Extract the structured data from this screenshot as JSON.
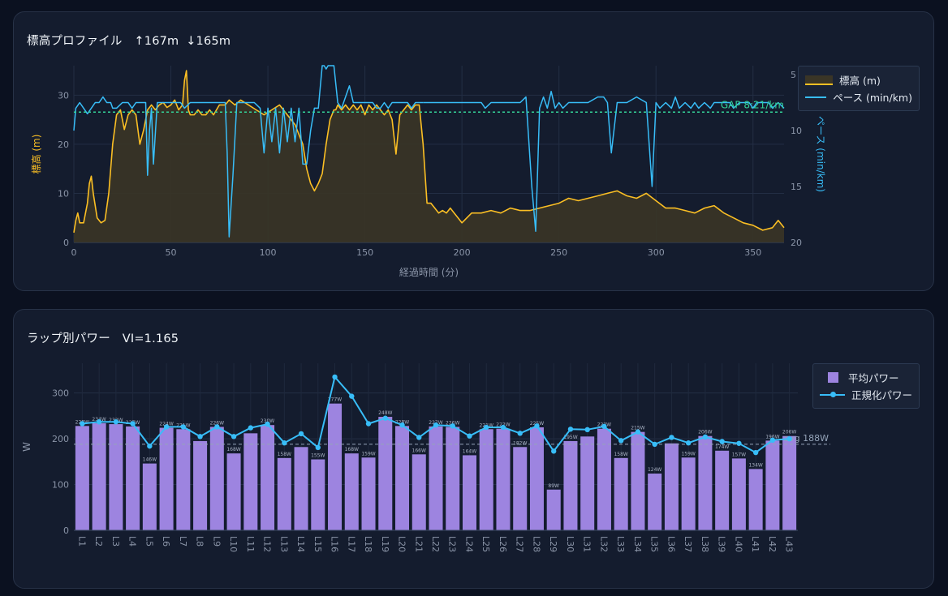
{
  "elevation_panel": {
    "title": "標高プロファイル",
    "gain": "↑167m",
    "loss": "↓165m"
  },
  "power_panel": {
    "title": "ラップ別パワー",
    "vi": "VI=1.165"
  },
  "colors": {
    "elevation": "#fbbf24",
    "pace": "#38bdf8",
    "gap_line": "#34d399",
    "power_bar": "#9d84e0",
    "normalized_power": "#38bdf8",
    "avg_line": "#94a3b8"
  },
  "chart_data": [
    {
      "type": "line",
      "xlabel": "経過時間 (分)",
      "ylabel_left": "標高 (m)",
      "ylabel_right": "ペース (min/km)",
      "xlim": [
        0,
        366
      ],
      "ylim_left": [
        0,
        36
      ],
      "ylim_right_inverted": [
        20,
        4.2
      ],
      "x_ticks": [
        0,
        50,
        100,
        150,
        200,
        250,
        300,
        350
      ],
      "y_ticks_left": [
        0,
        10,
        20,
        30
      ],
      "y_ticks_right": [
        5,
        10,
        15,
        20
      ],
      "legend_position": "top-right",
      "grid": true,
      "series": [
        {
          "name": "標高 (m)",
          "kind": "area",
          "x": [
            0,
            1,
            2,
            3,
            5,
            7,
            8,
            9,
            10,
            12,
            14,
            16,
            18,
            20,
            22,
            24,
            26,
            28,
            30,
            32,
            34,
            36,
            38,
            40,
            42,
            44,
            46,
            48,
            50,
            52,
            54,
            56,
            57,
            58,
            59,
            60,
            62,
            64,
            66,
            68,
            70,
            72,
            75,
            78,
            80,
            83,
            86,
            90,
            94,
            98,
            102,
            106,
            110,
            114,
            118,
            120,
            122,
            124,
            126,
            128,
            130,
            132,
            134,
            135,
            136,
            138,
            140,
            142,
            144,
            146,
            148,
            150,
            152,
            154,
            156,
            158,
            160,
            162,
            164,
            166,
            168,
            170,
            172,
            174,
            176,
            178,
            180,
            182,
            184,
            186,
            188,
            190,
            192,
            194,
            196,
            198,
            200,
            205,
            210,
            215,
            220,
            225,
            230,
            235,
            240,
            245,
            250,
            255,
            260,
            265,
            270,
            275,
            280,
            285,
            290,
            295,
            300,
            305,
            310,
            315,
            320,
            325,
            330,
            335,
            340,
            345,
            350,
            355,
            360,
            363,
            366
          ],
          "y": [
            2,
            4.5,
            6,
            4,
            4,
            8,
            12,
            13.5,
            10,
            5,
            4,
            4.5,
            10,
            20,
            26,
            27,
            23,
            26,
            27,
            26,
            20,
            23,
            27,
            28,
            27,
            28,
            28.5,
            27.5,
            28,
            29,
            27,
            28,
            33,
            35,
            27,
            26,
            26,
            27,
            26,
            26,
            27,
            26,
            28,
            28,
            29,
            28,
            29,
            28,
            27,
            26,
            27,
            28,
            26,
            24,
            20,
            15,
            12,
            10.5,
            12,
            14,
            20,
            25,
            27,
            27,
            28,
            27,
            28,
            27,
            28,
            27,
            28,
            26,
            28,
            27,
            28,
            27,
            26,
            27,
            25,
            18,
            26,
            27,
            28,
            27,
            28,
            28,
            20,
            8,
            8,
            7,
            6,
            6.5,
            6,
            7,
            6,
            5,
            4,
            6,
            6,
            6.5,
            6,
            7,
            6.5,
            6.5,
            7,
            7.5,
            8,
            9,
            8.5,
            9,
            9.5,
            10,
            10.5,
            9.5,
            9,
            10,
            8.5,
            7,
            7,
            6.5,
            6,
            7,
            7.5,
            6,
            5,
            4,
            3.5,
            2.5,
            3,
            4.5,
            3
          ]
        },
        {
          "name": "ペース (min/km)",
          "kind": "line",
          "x": [
            0,
            1,
            3,
            5,
            7,
            9,
            11,
            13,
            15,
            17,
            19,
            20,
            22,
            25,
            28,
            30,
            32,
            35,
            37,
            38,
            39,
            40,
            41,
            43,
            45,
            48,
            50,
            52,
            55,
            57,
            60,
            63,
            66,
            70,
            73,
            76,
            78,
            79,
            80,
            82,
            84,
            86,
            88,
            90,
            93,
            96,
            98,
            100,
            102,
            104,
            106,
            108,
            110,
            112,
            114,
            116,
            118,
            120,
            122,
            124,
            126,
            128,
            129,
            130,
            131,
            132,
            134,
            136,
            138,
            140,
            142,
            144,
            146,
            148,
            150,
            152,
            154,
            156,
            158,
            160,
            162,
            164,
            166,
            168,
            170,
            172,
            174,
            176,
            178,
            180
          ],
          "y": [
            10,
            8,
            7.5,
            8,
            8.5,
            8,
            7.5,
            7.5,
            7,
            7.5,
            7.5,
            8,
            8,
            7.5,
            7.5,
            8,
            7.5,
            7.5,
            7.5,
            14,
            10,
            8,
            13,
            7.5,
            7.5,
            7.5,
            7.5,
            7.5,
            7.5,
            8,
            7.5,
            7.5,
            7.5,
            7.5,
            7.5,
            7.5,
            7.5,
            12,
            19.5,
            14,
            7.5,
            7.5,
            7.5,
            7.5,
            7.5,
            8,
            12,
            8,
            11,
            8,
            12,
            8,
            11,
            8,
            11,
            8,
            13,
            13,
            10,
            8,
            8,
            4.2,
            4.2,
            4.5,
            4.2,
            4.2,
            4.2,
            7.5,
            8,
            7,
            6,
            7.5,
            7.5,
            7.5,
            7.5,
            7.5,
            7.5,
            8,
            8,
            7.5,
            8,
            7.5,
            7.5,
            7.5,
            7.5,
            7.5,
            8,
            7.5,
            7.5,
            7.5
          ]
        },
        {
          "name": "ペース (min/km)",
          "kind": "line",
          "x": [
            180,
            182,
            185,
            190,
            195,
            200,
            205,
            208,
            210,
            212,
            215,
            220,
            225,
            230,
            233,
            236,
            238,
            240,
            242,
            244,
            246,
            248,
            250,
            252,
            255,
            260,
            265,
            270,
            273,
            275,
            277,
            280,
            285,
            290,
            295,
            298,
            300,
            302,
            305,
            308,
            310,
            312,
            315,
            318,
            320,
            322,
            325,
            328,
            330,
            335,
            338,
            340,
            343,
            345,
            348,
            350,
            352,
            355,
            358,
            360,
            363,
            366
          ],
          "y": [
            7.5,
            7.5,
            7.5,
            7.5,
            7.5,
            7.5,
            7.5,
            7.5,
            7.5,
            8,
            7.5,
            7.5,
            7.5,
            7.5,
            7,
            15,
            19,
            8,
            7,
            8,
            6.5,
            8,
            7.5,
            8,
            7.5,
            7.5,
            7.5,
            7,
            7,
            7.5,
            12,
            7.5,
            7.5,
            7,
            7.5,
            15,
            7.5,
            8,
            7.5,
            8,
            7,
            8,
            7.5,
            8,
            7.5,
            8,
            7.5,
            8,
            7.5,
            7.5,
            7.5,
            8,
            7.5,
            7.5,
            7.5,
            8,
            7.5,
            7.5,
            7.5,
            8,
            7.5,
            8
          ]
        }
      ],
      "reference_line": {
        "label": "GAP 8:21/km",
        "y": 8.35
      }
    },
    {
      "type": "bar",
      "ylabel": "W",
      "ylim": [
        0,
        365
      ],
      "y_ticks": [
        0,
        100,
        200,
        300
      ],
      "grid": true,
      "legend_position": "top-right",
      "categories": [
        "L1",
        "L2",
        "L3",
        "L4",
        "L5",
        "L6",
        "L7",
        "L8",
        "L9",
        "L10",
        "L11",
        "L12",
        "L13",
        "L14",
        "L15",
        "L16",
        "L17",
        "L18",
        "L19",
        "L20",
        "L21",
        "L22",
        "L23",
        "L24",
        "L25",
        "L26",
        "L27",
        "L28",
        "L29",
        "L30",
        "L31",
        "L32",
        "L33",
        "L34",
        "L35",
        "L36",
        "L37",
        "L38",
        "L39",
        "L40",
        "L41",
        "L42",
        "L43"
      ],
      "series": [
        {
          "name": "平均パワー",
          "values": [
            228,
            234,
            232,
            227,
            146,
            224,
            221,
            195,
            226,
            168,
            212,
            230,
            158,
            182,
            155,
            277,
            168,
            159,
            248,
            228,
            166,
            227,
            226,
            164,
            221,
            222,
            182,
            225,
            89,
            195,
            205,
            222,
            158,
            215,
            124,
            190,
            159,
            206,
            174,
            157,
            134,
            196,
            206
          ],
          "labels": [
            "228W",
            "234W",
            "232W",
            "227W",
            "146W",
            "224W",
            "221W",
            "",
            "226W",
            "168W",
            "",
            "230W",
            "158W",
            "",
            "155W",
            "277W",
            "168W",
            "159W",
            "248W",
            "228W",
            "166W",
            "227W",
            "226W",
            "164W",
            "221W",
            "222W",
            "182W",
            "225W",
            "89W",
            "195W",
            "",
            "222W",
            "158W",
            "215W",
            "124W",
            "",
            "159W",
            "206W",
            "174W",
            "157W",
            "134W",
            "196W",
            "206W"
          ]
        },
        {
          "name": "正規化パワー",
          "values": [
            233,
            237,
            237,
            233,
            184,
            226,
            226,
            205,
            226,
            205,
            224,
            232,
            191,
            211,
            181,
            335,
            293,
            233,
            245,
            230,
            203,
            230,
            228,
            206,
            225,
            225,
            212,
            228,
            173,
            221,
            220,
            227,
            196,
            215,
            188,
            203,
            191,
            204,
            194,
            190,
            170,
            197,
            200
          ]
        }
      ],
      "reference_line": {
        "label": "avg 188W",
        "y": 188
      }
    }
  ]
}
